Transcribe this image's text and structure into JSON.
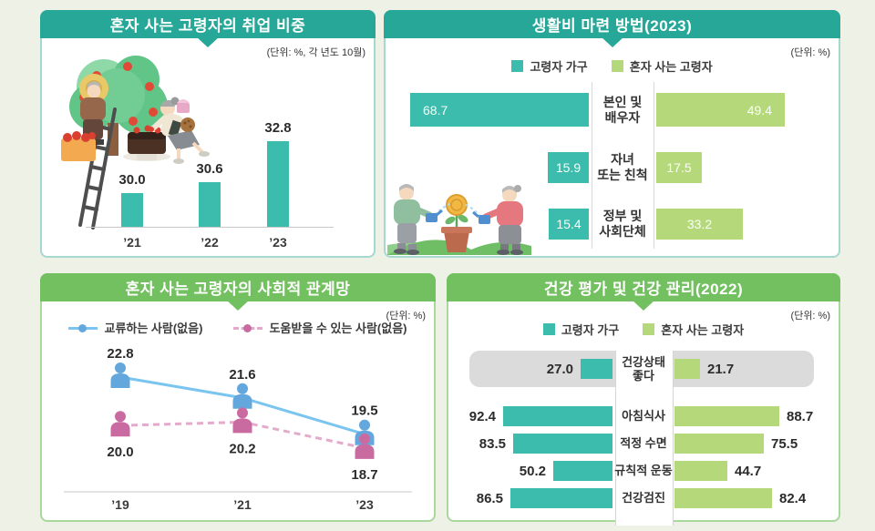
{
  "colors": {
    "page_bg": "#EDF1E6",
    "teal_header": "#26A797",
    "teal_bar": "#3CBCAC",
    "green_header": "#72C05F",
    "green_bar": "#B5D97A",
    "blue_line": "#79C5F0",
    "blue_marker": "#64A7DC",
    "pink_line": "#E3AACC",
    "pink_marker": "#C96BA1",
    "gray_highlight_row": "#DBDBDB"
  },
  "chart_data": [
    {
      "id": "employment",
      "type": "bar",
      "title": "혼자 사는 고령자의 취업 비중",
      "unit_label": "(단위: %, 각 년도 10월)",
      "categories": [
        "’21",
        "’22",
        "’23"
      ],
      "values": [
        30.0,
        30.6,
        32.8
      ],
      "ylabel": "",
      "xlabel": ""
    },
    {
      "id": "living_expenses",
      "type": "bar",
      "orientation": "horizontal-diverging",
      "title": "생활비 마련 방법(2023)",
      "unit_label": "(단위: %)",
      "categories": [
        [
          "본인 및",
          "배우자"
        ],
        [
          "자녀",
          "또는 친척"
        ],
        [
          "정부 및",
          "사회단체"
        ]
      ],
      "series": [
        {
          "name": "고령자 가구",
          "color": "#3CBCAC",
          "values": [
            68.7,
            15.9,
            15.4
          ]
        },
        {
          "name": "혼자 사는 고령자",
          "color": "#B5D97A",
          "values": [
            49.4,
            17.5,
            33.2
          ]
        }
      ]
    },
    {
      "id": "social_network",
      "type": "line",
      "title": "혼자 사는 고령자의 사회적 관계망",
      "unit_label": "(단위: %)",
      "x": [
        "’19",
        "’21",
        "’23"
      ],
      "series": [
        {
          "name": "교류하는 사람(없음)",
          "style": "solid",
          "line_color": "#79C5F0",
          "marker_color": "#64A7DC",
          "values": [
            22.8,
            21.6,
            19.5
          ]
        },
        {
          "name": "도움받을 수 있는 사람(없음)",
          "style": "dashed",
          "line_color": "#E3AACC",
          "marker_color": "#C96BA1",
          "values": [
            20.0,
            20.2,
            18.7
          ]
        }
      ]
    },
    {
      "id": "health",
      "type": "bar",
      "orientation": "horizontal-diverging",
      "title": "건강 평가 및 건강 관리(2022)",
      "unit_label": "(단위: %)",
      "categories": [
        [
          "건강상태",
          "좋다"
        ],
        [
          "아침식사"
        ],
        [
          "적정 수면"
        ],
        [
          "규칙적 운동"
        ],
        [
          "건강검진"
        ]
      ],
      "highlight_category_index": 0,
      "series": [
        {
          "name": "고령자 가구",
          "color": "#3CBCAC",
          "values": [
            27.0,
            92.4,
            83.5,
            50.2,
            86.5
          ]
        },
        {
          "name": "혼자 사는 고령자",
          "color": "#B5D97A",
          "values": [
            21.7,
            88.7,
            75.5,
            44.7,
            82.4
          ]
        }
      ]
    }
  ]
}
